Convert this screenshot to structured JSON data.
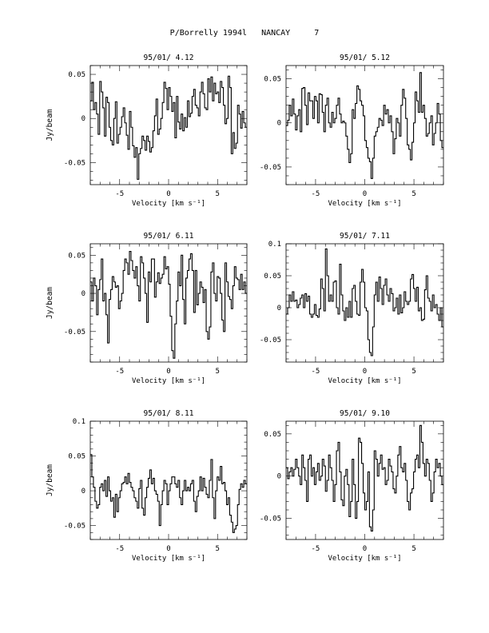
{
  "page": {
    "title_object": "P/Borrelly 1994l",
    "title_site": "NANCAY",
    "title_number": "7"
  },
  "chart_data": [
    {
      "type": "line",
      "title": "95/01/ 4.12",
      "xlabel": "Velocity [km s⁻¹]",
      "ylabel": "Jy/beam",
      "xlim": [
        -8,
        8
      ],
      "ylim": [
        -0.075,
        0.06
      ],
      "xticks": [
        -5,
        0,
        5
      ],
      "yticks": [
        -0.05,
        0,
        0.05
      ],
      "ytick_labels": [
        "-0.05",
        "0",
        "0.05"
      ],
      "x_start": -8,
      "x_step": 0.16,
      "y": [
        0.02,
        0.041,
        0.01,
        0.018,
        0.005,
        -0.018,
        0.042,
        0.03,
        0.012,
        -0.02,
        0.024,
        0.018,
        -0.01,
        -0.025,
        -0.03,
        0.0,
        0.019,
        -0.028,
        -0.018,
        -0.01,
        0.002,
        0.012,
        -0.005,
        -0.019,
        -0.035,
        0.008,
        -0.01,
        -0.031,
        -0.044,
        -0.033,
        -0.069,
        -0.04,
        -0.034,
        -0.02,
        -0.025,
        -0.036,
        -0.02,
        -0.026,
        -0.038,
        -0.033,
        -0.014,
        0.003,
        0.022,
        -0.018,
        -0.012,
        0.0,
        0.018,
        0.041,
        0.034,
        0.01,
        0.035,
        0.025,
        0.008,
        0.018,
        -0.022,
        0.025,
        -0.004,
        -0.012,
        0.005,
        -0.014,
        0.001,
        -0.01,
        0.02,
        0.002,
        0.006,
        0.025,
        0.033,
        0.015,
        0.012,
        0.003,
        0.03,
        0.041,
        0.028,
        0.012,
        0.01,
        0.045,
        0.03,
        0.047,
        0.02,
        0.04,
        0.028,
        0.03,
        0.018,
        0.042,
        0.035,
        0.015,
        -0.006,
        0.0,
        0.048,
        0.035,
        -0.04,
        -0.016,
        -0.034,
        -0.028,
        0.015,
        0.005,
        -0.011,
        0.008,
        -0.005,
        -0.01
      ]
    },
    {
      "type": "line",
      "title": "95/01/ 5.12",
      "xlabel": "Velocity [km s⁻¹]",
      "ylabel": "",
      "xlim": [
        -8,
        8
      ],
      "ylim": [
        -0.07,
        0.065
      ],
      "xticks": [
        -5,
        0,
        5
      ],
      "yticks": [
        -0.05,
        0,
        0.05
      ],
      "ytick_labels": [
        "-0.05",
        "0",
        "0.05"
      ],
      "x_start": -8,
      "x_step": 0.16,
      "y": [
        -0.003,
        0.003,
        0.02,
        0.008,
        0.027,
        0.01,
        -0.008,
        0.008,
        0.015,
        -0.01,
        0.039,
        0.04,
        0.02,
        -0.002,
        0.034,
        0.025,
        0.025,
        0.005,
        0.03,
        0.025,
        0.0,
        0.033,
        0.032,
        0.012,
        -0.01,
        0.02,
        0.028,
        0.0,
        -0.005,
        0.012,
        0.0,
        0.005,
        0.02,
        0.028,
        0.01,
        0.0,
        0.002,
        0.0,
        -0.015,
        -0.03,
        -0.045,
        -0.035,
        0.015,
        0.005,
        0.022,
        0.042,
        0.038,
        0.025,
        0.02,
        0.008,
        -0.02,
        -0.028,
        -0.04,
        -0.044,
        -0.063,
        -0.04,
        -0.015,
        -0.01,
        -0.005,
        0.005,
        0.003,
        -0.003,
        0.02,
        0.01,
        0.015,
        0.0,
        0.008,
        -0.01,
        -0.035,
        -0.018,
        0.005,
        0.0,
        -0.015,
        0.02,
        0.038,
        0.028,
        0.005,
        -0.025,
        -0.03,
        -0.042,
        -0.022,
        0.0,
        0.035,
        0.025,
        0.012,
        0.057,
        0.012,
        0.02,
        0.005,
        -0.015,
        -0.012,
        0.0,
        0.008,
        -0.025,
        -0.012,
        0.0,
        0.022,
        0.01,
        -0.02,
        -0.028
      ]
    },
    {
      "type": "line",
      "title": "95/01/ 6.11",
      "xlabel": "Velocity [km s⁻¹]",
      "ylabel": "Jy/beam",
      "xlim": [
        -8,
        8
      ],
      "ylim": [
        -0.09,
        0.065
      ],
      "xticks": [
        -5,
        0,
        5
      ],
      "yticks": [
        -0.05,
        0,
        0.05
      ],
      "ytick_labels": [
        "-0.05",
        "0",
        "0.05"
      ],
      "x_start": -8,
      "x_step": 0.16,
      "y": [
        0.015,
        -0.01,
        0.02,
        0.01,
        -0.028,
        0.005,
        0.018,
        0.045,
        -0.01,
        0.0,
        -0.028,
        -0.065,
        -0.008,
        0.005,
        0.022,
        0.015,
        0.008,
        0.01,
        -0.02,
        -0.01,
        0.0,
        0.03,
        0.045,
        0.04,
        0.025,
        0.055,
        0.043,
        0.03,
        0.02,
        0.035,
        0.01,
        -0.01,
        0.048,
        0.04,
        0.02,
        0.0,
        -0.038,
        0.028,
        0.015,
        0.045,
        0.045,
        -0.005,
        0.015,
        0.027,
        0.013,
        0.02,
        0.025,
        0.048,
        0.032,
        0.035,
        0.012,
        -0.03,
        -0.075,
        -0.085,
        -0.04,
        -0.01,
        0.028,
        0.01,
        0.05,
        -0.008,
        -0.04,
        0.02,
        0.03,
        0.045,
        0.052,
        0.03,
        -0.025,
        0.03,
        -0.015,
        0.0,
        0.015,
        0.008,
        -0.012,
        0.005,
        -0.05,
        -0.06,
        -0.044,
        0.028,
        0.04,
        0.0,
        -0.01,
        0.022,
        0.02,
        0.0,
        -0.035,
        -0.05,
        0.04,
        0.015,
        -0.004,
        -0.008,
        -0.02,
        0.01,
        0.035,
        0.02,
        0.018,
        0.005,
        0.025,
        0.005,
        0.015,
        0.0
      ]
    },
    {
      "type": "line",
      "title": "95/01/ 7.11",
      "xlabel": "Velocity [km s⁻¹]",
      "ylabel": "",
      "xlim": [
        -8,
        8
      ],
      "ylim": [
        -0.085,
        0.1
      ],
      "xticks": [
        -5,
        0,
        5
      ],
      "yticks": [
        -0.05,
        0,
        0.05,
        0.1
      ],
      "ytick_labels": [
        "-0.05",
        "0",
        "0.05",
        "0.1"
      ],
      "x_start": -8,
      "x_step": 0.16,
      "y": [
        -0.01,
        0.0,
        0.02,
        0.01,
        0.025,
        0.01,
        0.012,
        0.0,
        0.005,
        0.015,
        0.02,
        0.0,
        0.022,
        0.01,
        0.018,
        -0.01,
        -0.015,
        -0.01,
        0.005,
        -0.012,
        -0.015,
        -0.002,
        0.045,
        0.03,
        -0.005,
        0.092,
        0.05,
        0.01,
        0.02,
        0.01,
        0.04,
        0.042,
        0.0,
        -0.01,
        0.068,
        0.02,
        -0.005,
        -0.02,
        0.0,
        -0.015,
        0.01,
        -0.015,
        0.03,
        0.035,
        0.01,
        -0.01,
        -0.012,
        0.04,
        0.06,
        0.04,
        0.0,
        -0.005,
        -0.05,
        -0.07,
        -0.075,
        -0.03,
        0.02,
        0.04,
        0.01,
        0.048,
        0.03,
        0.005,
        0.035,
        0.045,
        0.02,
        0.01,
        0.03,
        0.022,
        -0.005,
        0.0,
        0.015,
        -0.01,
        0.02,
        -0.008,
        0.0,
        0.025,
        0.01,
        0.005,
        0.01,
        0.045,
        0.052,
        0.03,
        0.01,
        0.032,
        -0.005,
        0.0,
        -0.02,
        -0.018,
        0.028,
        0.05,
        0.015,
        0.01,
        -0.005,
        0.02,
        0.0,
        0.005,
        -0.01,
        -0.02,
        0.0,
        -0.03
      ]
    },
    {
      "type": "line",
      "title": "95/01/ 8.11",
      "xlabel": "Velocity [km s⁻¹]",
      "ylabel": "Jy/beam",
      "xlim": [
        -8,
        8
      ],
      "ylim": [
        -0.07,
        0.1
      ],
      "xticks": [
        -5,
        0,
        5
      ],
      "yticks": [
        -0.05,
        0,
        0.05,
        0.1
      ],
      "ytick_labels": [
        "-0.05",
        "0",
        "0.05",
        "0.1"
      ],
      "x_start": -8,
      "x_step": 0.16,
      "y": [
        0.052,
        0.02,
        0.005,
        -0.015,
        -0.025,
        -0.02,
        0.005,
        0.01,
        0.0,
        0.015,
        -0.008,
        0.02,
        0.0,
        -0.015,
        -0.01,
        -0.038,
        -0.005,
        -0.03,
        -0.01,
        0.0,
        0.01,
        0.012,
        0.02,
        0.01,
        0.025,
        0.012,
        0.005,
        0.0,
        -0.01,
        -0.015,
        -0.025,
        0.003,
        0.015,
        -0.025,
        -0.035,
        -0.01,
        0.005,
        0.018,
        0.03,
        0.01,
        0.018,
        0.0,
        -0.005,
        -0.015,
        -0.05,
        -0.02,
        0.0,
        0.015,
        0.01,
        -0.02,
        0.0,
        0.01,
        0.02,
        0.02,
        0.01,
        0.005,
        0.015,
        -0.01,
        -0.02,
        0.0,
        0.015,
        0.0,
        0.005,
        0.0,
        0.01,
        0.015,
        -0.015,
        -0.03,
        -0.008,
        0.0,
        0.02,
        0.0,
        0.018,
        0.005,
        -0.005,
        -0.01,
        0.015,
        0.045,
        -0.01,
        -0.04,
        0.0,
        0.02,
        0.015,
        0.035,
        0.01,
        0.012,
        0.0,
        -0.02,
        -0.01,
        -0.035,
        -0.045,
        -0.06,
        -0.055,
        -0.05,
        -0.02,
        0.002,
        0.01,
        0.005,
        0.015,
        0.01
      ]
    },
    {
      "type": "line",
      "title": "95/01/ 9.10",
      "xlabel": "Velocity [km s⁻¹]",
      "ylabel": "",
      "xlim": [
        -8,
        8
      ],
      "ylim": [
        -0.075,
        0.065
      ],
      "xticks": [
        -5,
        0,
        5
      ],
      "yticks": [
        -0.05,
        0,
        0.05
      ],
      "ytick_labels": [
        "-0.05",
        "0",
        "0.05"
      ],
      "x_start": -8,
      "x_step": 0.16,
      "y": [
        0.01,
        -0.003,
        0.005,
        0.01,
        0.0,
        0.008,
        0.02,
        0.01,
        0.0,
        -0.01,
        0.025,
        0.01,
        -0.005,
        -0.03,
        0.02,
        0.025,
        0.0,
        0.01,
        -0.01,
        0.005,
        0.015,
        -0.005,
        0.0,
        0.02,
        0.012,
        -0.018,
        -0.005,
        0.025,
        0.01,
        -0.005,
        -0.03,
        -0.01,
        0.03,
        0.04,
        0.005,
        -0.028,
        -0.035,
        0.0,
        0.008,
        -0.01,
        -0.048,
        -0.03,
        0.02,
        -0.01,
        -0.05,
        -0.03,
        0.045,
        0.04,
        0.015,
        -0.02,
        -0.04,
        -0.03,
        0.005,
        -0.06,
        -0.065,
        -0.04,
        0.03,
        0.02,
        0.0,
        0.015,
        0.025,
        0.008,
        0.01,
        -0.01,
        -0.005,
        0.02,
        0.012,
        0.005,
        -0.015,
        -0.02,
        0.0,
        0.025,
        0.035,
        0.01,
        0.005,
        0.015,
        -0.005,
        -0.03,
        -0.04,
        -0.02,
        -0.015,
        0.005,
        0.02,
        0.025,
        0.01,
        0.06,
        0.04,
        0.015,
        0.0,
        0.02,
        0.015,
        -0.005,
        -0.03,
        -0.02,
        0.005,
        0.02,
        0.01,
        0.015,
        0.0,
        -0.01
      ]
    }
  ]
}
